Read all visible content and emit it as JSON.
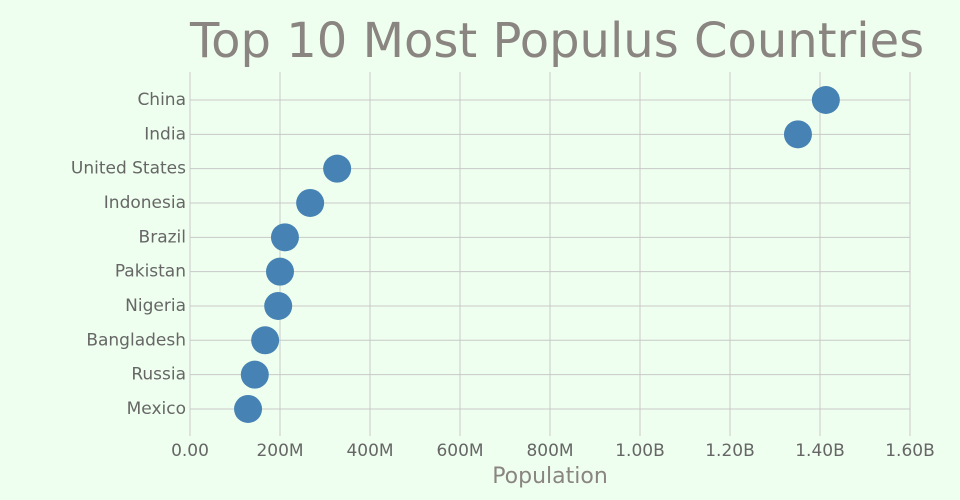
{
  "chart_data": {
    "type": "dot",
    "title": "Top 10 Most Populus Countries",
    "x_label": "Population",
    "categories": [
      "China",
      "India",
      "United States",
      "Indonesia",
      "Brazil",
      "Pakistan",
      "Nigeria",
      "Bangladesh",
      "Russia",
      "Mexico"
    ],
    "values": [
      1413000000,
      1351000000,
      327000000,
      267000000,
      211000000,
      200000000,
      196000000,
      167000000,
      144000000,
      129000000
    ],
    "color": "#4682b4",
    "xlim": [
      0,
      1600000000
    ],
    "xticks": [
      {
        "value": 0,
        "label": "0.00"
      },
      {
        "value": 200000000,
        "label": "200M"
      },
      {
        "value": 400000000,
        "label": "400M"
      },
      {
        "value": 600000000,
        "label": "600M"
      },
      {
        "value": 800000000,
        "label": "800M"
      },
      {
        "value": 1000000000,
        "label": "1.00B"
      },
      {
        "value": 1200000000,
        "label": "1.20B"
      },
      {
        "value": 1400000000,
        "label": "1.40B"
      },
      {
        "value": 1600000000,
        "label": "1.60B"
      }
    ],
    "grid": true
  }
}
